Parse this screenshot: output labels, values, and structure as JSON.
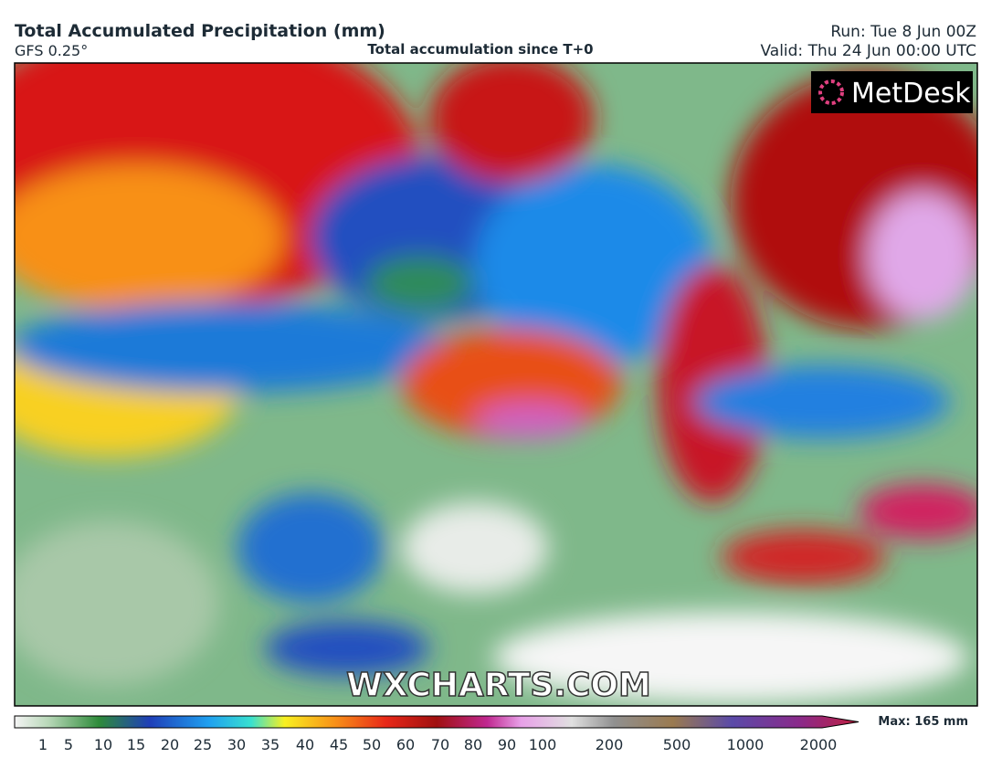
{
  "header": {
    "title": "Total Accumulated Precipitation (mm)",
    "model": "GFS 0.25°",
    "subtitle": "Total accumulation since T+0",
    "run": "Run: Tue 8 Jun 00Z",
    "valid": "Valid: Thu 24 Jun 00:00 UTC"
  },
  "map": {
    "logo": "MetDesk",
    "watermark": "WXCHARTS.COM"
  },
  "colorbar": {
    "labels": [
      1,
      5,
      10,
      15,
      20,
      25,
      30,
      35,
      40,
      45,
      50,
      60,
      70,
      80,
      90,
      100,
      200,
      500,
      1000,
      2000
    ],
    "max_label": "Max: 165 mm"
  }
}
